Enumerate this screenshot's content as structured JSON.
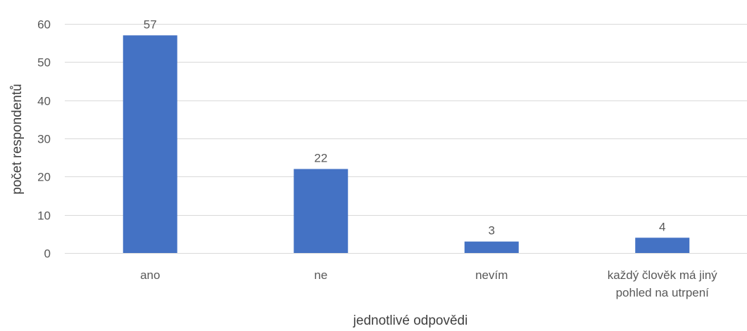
{
  "chart_data": {
    "type": "bar",
    "categories": [
      [
        "ano"
      ],
      [
        "ne"
      ],
      [
        "nevím"
      ],
      [
        "každý člověk má jiný",
        "pohled na utrpení"
      ]
    ],
    "values": [
      57,
      22,
      3,
      4
    ],
    "data_labels": [
      "57",
      "22",
      "3",
      "4"
    ],
    "title": "",
    "xlabel": "jednotlivé odpovědi",
    "ylabel": "počet respondentů",
    "ylim": [
      0,
      60
    ],
    "yticks": [
      0,
      10,
      20,
      30,
      40,
      50,
      60
    ],
    "ytick_labels": [
      "0",
      "10",
      "20",
      "30",
      "40",
      "50",
      "60"
    ],
    "grid": true,
    "legend": "none",
    "bar_color": "#4472C4",
    "grid_color": "#D9D9D9",
    "text_color": "#595959"
  }
}
